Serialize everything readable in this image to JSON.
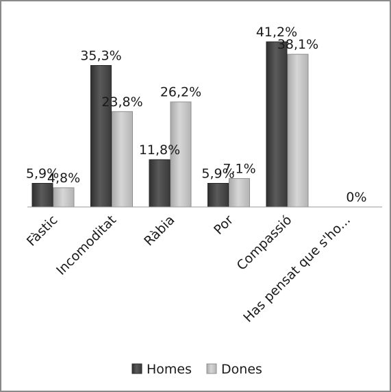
{
  "chart_data": {
    "type": "bar",
    "categories": [
      "Fàstic",
      "Incomoditat",
      "Ràbia",
      "Por",
      "Compassió",
      "Has pensat que s'ho..."
    ],
    "series": [
      {
        "name": "Homes",
        "values": [
          5.9,
          35.3,
          11.8,
          5.9,
          41.2,
          null
        ],
        "labels": [
          "5,9%",
          "35,3%",
          "11,8%",
          "5,9%",
          "41,2%",
          ""
        ],
        "color": "#4a4a4a"
      },
      {
        "name": "Dones",
        "values": [
          4.8,
          23.8,
          26.2,
          7.1,
          38.1,
          0
        ],
        "labels": [
          "4,8%",
          "23,8%",
          "26,2%",
          "7,1%",
          "38,1%",
          "0%"
        ],
        "color": "#c2c2c2"
      }
    ],
    "legend_position": "bottom",
    "grid": false
  }
}
